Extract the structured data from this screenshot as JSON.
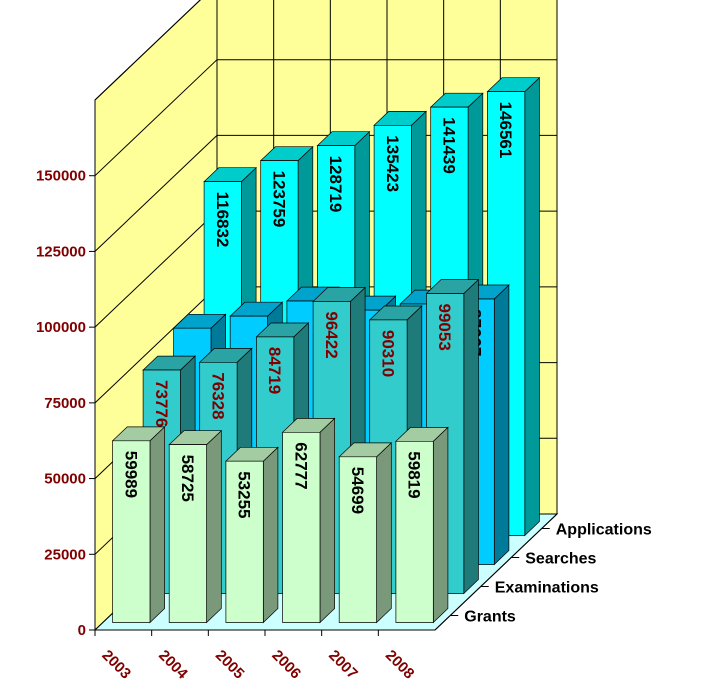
{
  "chart_data": {
    "type": "bar",
    "categories": [
      "2003",
      "2004",
      "2005",
      "2006",
      "2007",
      "2008"
    ],
    "series": [
      {
        "name": "Applications",
        "values": [
          116832,
          123759,
          128719,
          135423,
          141439,
          146561
        ],
        "color": "#00FFFF",
        "label_color": "#000000"
      },
      {
        "name": "Searches",
        "values": [
          78000,
          82000,
          87000,
          84000,
          86000,
          87667
        ],
        "color": "#00CCFF",
        "label_color": "#000000",
        "labels": [
          "",
          "",
          "",
          "",
          "",
          "87667"
        ]
      },
      {
        "name": "Examinations",
        "values": [
          73776,
          76328,
          84719,
          96422,
          90310,
          99053
        ],
        "color": "#33CCCC",
        "label_color": "#800000"
      },
      {
        "name": "Grants",
        "values": [
          59989,
          58725,
          53255,
          62777,
          54699,
          59819
        ],
        "color": "#CCFFCC",
        "label_color": "#000000"
      }
    ],
    "ylim": [
      0,
      175000
    ],
    "yticks": [
      "0",
      "25000",
      "50000",
      "75000",
      "100000",
      "125000",
      "150000"
    ],
    "wall_color": "#FFFF99",
    "floor_color": "#CCFFFF",
    "grid": true,
    "legend": "none"
  }
}
